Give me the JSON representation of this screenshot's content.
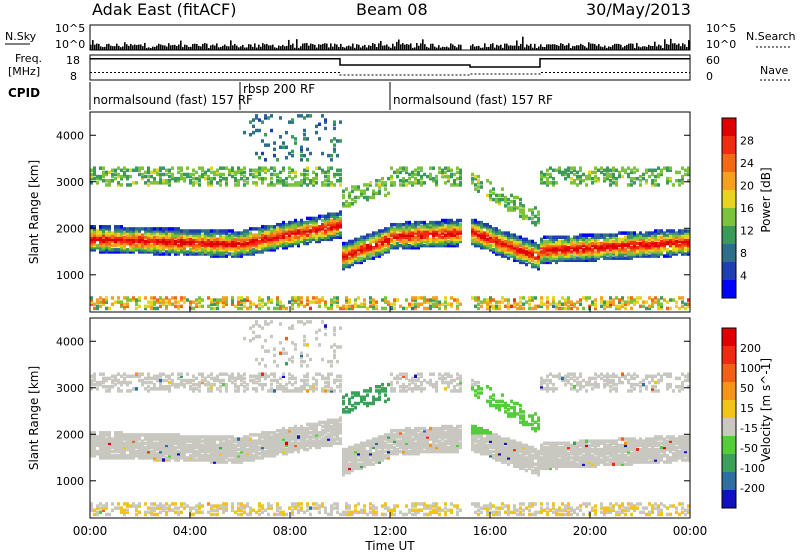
{
  "header": {
    "station": "Adak East (fitACF)",
    "beam": "Beam 08",
    "date": "30/May/2013"
  },
  "top_labels": {
    "nsky": "N.Sky",
    "nsearch": "N.Search",
    "freq": "Freq.",
    "freq_unit": "[MHz]",
    "nave": "Nave",
    "cpid": "CPID",
    "tick_1e5": "10^5",
    "tick_1e0": "10^0",
    "freq_18": "18",
    "freq_8": "8",
    "nave_60": "60",
    "nave_0": "0"
  },
  "cpid_segments": [
    {
      "label": "normalsound (fast) 157 RF",
      "start_h": 0.0,
      "end_h": 6.0
    },
    {
      "label": "rbsp 200 RF",
      "start_h": 6.0,
      "end_h": 12.0
    },
    {
      "label": "normalsound (fast) 157 RF",
      "start_h": 12.0,
      "end_h": 24.0
    }
  ],
  "chart_data": [
    {
      "type": "heatmap",
      "name": "power",
      "ylabel": "Slant Range [km]",
      "xlabel": "",
      "x_range_hours": [
        0,
        24
      ],
      "ylim": [
        200,
        4500
      ],
      "yticks": [
        1000,
        2000,
        3000,
        4000
      ],
      "colorbar": {
        "label": "Power [dB]",
        "ticks": [
          "4",
          "8",
          "12",
          "16",
          "20",
          "24",
          "28"
        ],
        "colors": [
          "#0000ff",
          "#1f3fb0",
          "#2f6e8a",
          "#3a9a5a",
          "#7cc23a",
          "#e6d41e",
          "#f5a01e",
          "#f26a14",
          "#ef2b10",
          "#e00000"
        ]
      }
    },
    {
      "type": "heatmap",
      "name": "velocity",
      "ylabel": "Slant Range [km]",
      "xlabel": "Time UT",
      "x_range_hours": [
        0,
        24
      ],
      "ylim": [
        200,
        4500
      ],
      "yticks": [
        1000,
        2000,
        3000,
        4000
      ],
      "colorbar": {
        "label": "Velocity [m s^-1]",
        "ticks": [
          "200",
          "100",
          "50",
          "15",
          "-15",
          "-50",
          "-100",
          "-200"
        ],
        "colors": [
          "#1010c0",
          "#2f6ea0",
          "#3aa05a",
          "#55cc3a",
          "#c8c8c0",
          "#f2c418",
          "#f59418",
          "#f26018",
          "#ee2a12",
          "#e00000"
        ]
      }
    }
  ],
  "x_axis": {
    "ticks": [
      "00:00",
      "04:00",
      "08:00",
      "12:00",
      "16:00",
      "20:00",
      "00:00"
    ],
    "label": "Time UT"
  }
}
